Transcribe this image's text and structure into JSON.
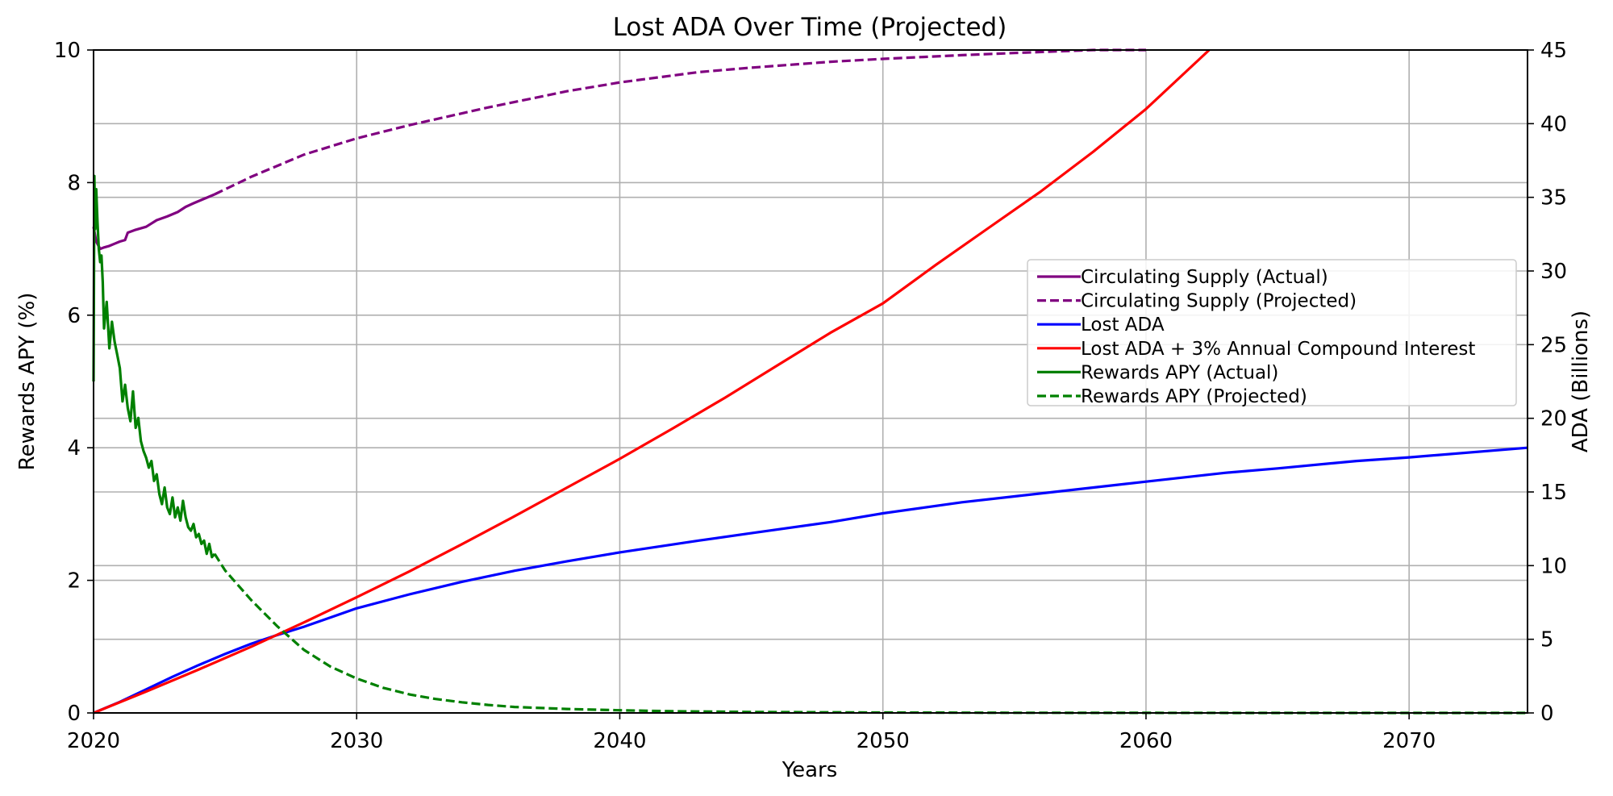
{
  "chart_data": {
    "type": "line",
    "title": "Lost ADA Over Time (Projected)",
    "xlabel": "Years",
    "ylabel_left": "Rewards APY (%)",
    "ylabel_right": "ADA (Billions)",
    "xlim": [
      2020,
      2074.5
    ],
    "ylim_left": [
      0,
      10
    ],
    "ylim_right": [
      0,
      45
    ],
    "x_ticks": [
      2020,
      2030,
      2040,
      2050,
      2060,
      2070
    ],
    "y_ticks_left": [
      0,
      2,
      4,
      6,
      8,
      10
    ],
    "y_ticks_right": [
      0,
      5,
      10,
      15,
      20,
      25,
      30,
      35,
      40,
      45
    ],
    "grid": true,
    "legend_position": "center-right",
    "series": [
      {
        "name": "Circulating Supply (Actual)",
        "axis": "right",
        "color": "#800080",
        "style": "solid",
        "x": [
          2020.0,
          2020.1,
          2020.25,
          2020.4,
          2020.6,
          2020.8,
          2021.0,
          2021.2,
          2021.3,
          2021.6,
          2022.0,
          2022.4,
          2022.8,
          2023.2,
          2023.5,
          2023.8,
          2024.2,
          2024.6
        ],
        "y": [
          33.0,
          32.0,
          31.5,
          31.6,
          31.7,
          31.85,
          32.0,
          32.1,
          32.6,
          32.8,
          33.0,
          33.45,
          33.7,
          34.0,
          34.35,
          34.6,
          34.9,
          35.2
        ]
      },
      {
        "name": "Circulating Supply (Projected)",
        "axis": "right",
        "color": "#800080",
        "style": "dashed",
        "x": [
          2024.6,
          2026,
          2028,
          2030,
          2032,
          2035,
          2038,
          2040,
          2043,
          2045,
          2048,
          2050,
          2053,
          2055,
          2058,
          2060
        ],
        "y": [
          35.2,
          36.4,
          37.9,
          39.0,
          39.9,
          41.1,
          42.2,
          42.8,
          43.5,
          43.8,
          44.2,
          44.4,
          44.65,
          44.8,
          45.0,
          45.0
        ]
      },
      {
        "name": "Lost ADA",
        "axis": "right",
        "color": "#0000ff",
        "style": "solid",
        "x": [
          2020,
          2021,
          2022,
          2023,
          2024,
          2025,
          2026,
          2027,
          2028,
          2030,
          2032,
          2034,
          2036,
          2038,
          2040,
          2043,
          2045,
          2048,
          2050,
          2053,
          2055,
          2058,
          2060,
          2063,
          2065,
          2068,
          2070,
          2074.5
        ],
        "y": [
          0,
          0.75,
          1.6,
          2.45,
          3.25,
          4.0,
          4.7,
          5.3,
          5.85,
          7.1,
          8.05,
          8.9,
          9.65,
          10.3,
          10.9,
          11.7,
          12.2,
          12.95,
          13.55,
          14.3,
          14.7,
          15.3,
          15.7,
          16.3,
          16.6,
          17.1,
          17.35,
          18.0
        ]
      },
      {
        "name": "Lost ADA + 3% Annual Compound Interest",
        "axis": "right",
        "color": "#ff0000",
        "style": "solid",
        "x": [
          2020,
          2022,
          2024,
          2026,
          2028,
          2030,
          2032,
          2034,
          2036,
          2038,
          2040,
          2042,
          2044,
          2046,
          2048,
          2050,
          2052,
          2054,
          2056,
          2058,
          2060,
          2062.4
        ],
        "y": [
          0,
          1.45,
          2.95,
          4.5,
          6.15,
          7.85,
          9.6,
          11.45,
          13.35,
          15.3,
          17.25,
          19.3,
          21.4,
          23.6,
          25.8,
          27.8,
          30.4,
          32.9,
          35.4,
          38.1,
          41.0,
          45.0
        ]
      },
      {
        "name": "Rewards APY (Actual)",
        "axis": "left",
        "color": "#008000",
        "style": "solid",
        "x": [
          2020.0,
          2020.03,
          2020.06,
          2020.1,
          2020.15,
          2020.2,
          2020.25,
          2020.3,
          2020.35,
          2020.4,
          2020.5,
          2020.6,
          2020.7,
          2020.8,
          2020.9,
          2021.0,
          2021.1,
          2021.2,
          2021.3,
          2021.4,
          2021.5,
          2021.6,
          2021.7,
          2021.8,
          2021.9,
          2022.0,
          2022.1,
          2022.2,
          2022.3,
          2022.4,
          2022.5,
          2022.6,
          2022.7,
          2022.8,
          2022.9,
          2023.0,
          2023.1,
          2023.2,
          2023.3,
          2023.4,
          2023.5,
          2023.6,
          2023.7,
          2023.8,
          2023.9,
          2024.0,
          2024.1,
          2024.2,
          2024.3,
          2024.4,
          2024.5,
          2024.6
        ],
        "y": [
          5.0,
          8.1,
          7.3,
          7.9,
          7.4,
          7.0,
          6.8,
          6.9,
          6.5,
          5.8,
          6.2,
          5.5,
          5.9,
          5.6,
          5.4,
          5.2,
          4.7,
          4.95,
          4.6,
          4.4,
          4.85,
          4.3,
          4.45,
          4.1,
          3.95,
          3.85,
          3.7,
          3.8,
          3.5,
          3.6,
          3.3,
          3.15,
          3.4,
          3.1,
          3.0,
          3.25,
          2.95,
          3.1,
          2.9,
          3.2,
          2.95,
          2.8,
          2.75,
          2.85,
          2.65,
          2.7,
          2.55,
          2.6,
          2.4,
          2.55,
          2.35,
          2.4
        ]
      },
      {
        "name": "Rewards APY (Projected)",
        "axis": "left",
        "color": "#008000",
        "style": "dashed",
        "x": [
          2024.6,
          2025,
          2026,
          2027,
          2028,
          2029,
          2030,
          2031,
          2032,
          2033,
          2034,
          2035,
          2036,
          2038,
          2040,
          2042,
          2045,
          2050,
          2055,
          2060,
          2065,
          2070,
          2074.5
        ],
        "y": [
          2.4,
          2.15,
          1.7,
          1.3,
          0.95,
          0.7,
          0.52,
          0.38,
          0.28,
          0.21,
          0.16,
          0.12,
          0.09,
          0.06,
          0.04,
          0.025,
          0.015,
          0.006,
          0.003,
          0.001,
          0.0005,
          0.0002,
          0.0001
        ]
      }
    ]
  }
}
